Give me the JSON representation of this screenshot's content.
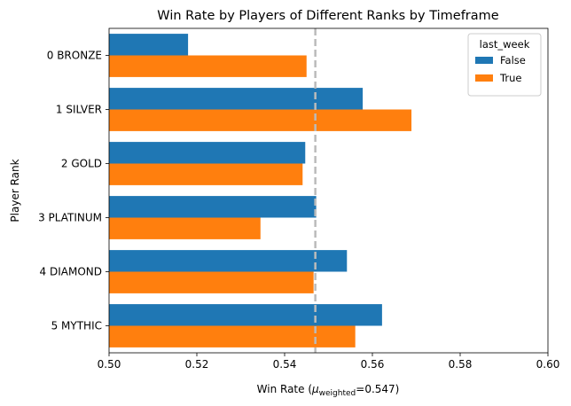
{
  "chart_data": {
    "type": "bar",
    "orientation": "horizontal",
    "title": "Win Rate by Players of Different Ranks by Timeframe",
    "xlabel": "Win Rate (μ_weighted=0.547)",
    "xlabel_parts": {
      "prefix": "Win Rate (",
      "mu": "μ",
      "subscript": "weighted",
      "suffix": "=0.547)"
    },
    "ylabel": "Player Rank",
    "xlim": [
      0.5,
      0.6
    ],
    "xticks": [
      "0.50",
      "0.52",
      "0.54",
      "0.56",
      "0.58",
      "0.60"
    ],
    "xtick_values": [
      0.5,
      0.52,
      0.54,
      0.56,
      0.58,
      0.6
    ],
    "categories": [
      "0 BRONZE",
      "1 SILVER",
      "2 GOLD",
      "3 PLATINUM",
      "4 DIAMOND",
      "5 MYTHIC"
    ],
    "series": [
      {
        "name": "False",
        "color": "#1f77b4",
        "values": [
          0.518,
          0.5578,
          0.5447,
          0.5472,
          0.5542,
          0.5622
        ]
      },
      {
        "name": "True",
        "color": "#ff7f0e",
        "values": [
          0.545,
          0.5689,
          0.5441,
          0.5345,
          0.5466,
          0.5561
        ]
      }
    ],
    "reference_line": {
      "value": 0.547,
      "style": "dashed",
      "color": "#bbbbbb"
    },
    "legend": {
      "title": "last_week",
      "placement": "top-right"
    },
    "grid": false
  }
}
